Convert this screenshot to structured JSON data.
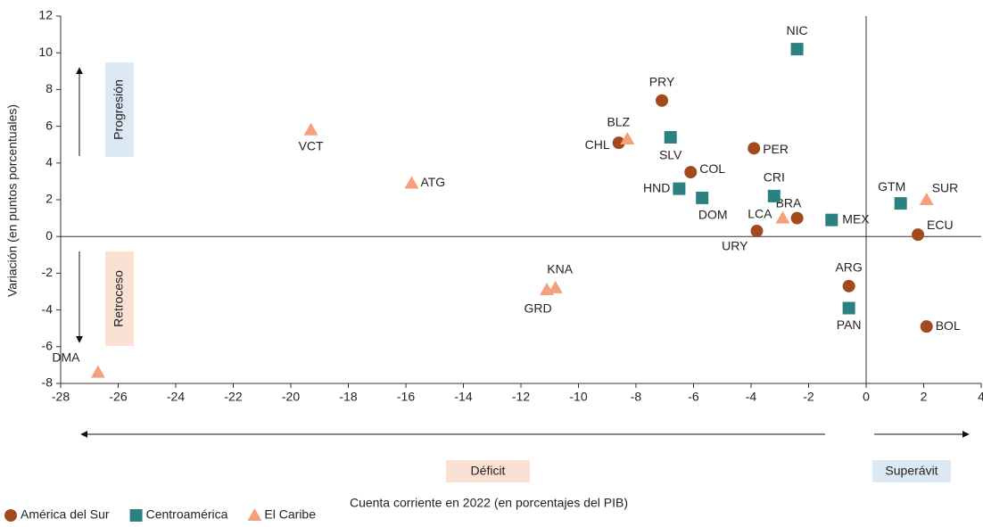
{
  "chart_data": {
    "type": "scatter",
    "xlabel": "Cuenta corriente en 2022 (en porcentajes del PIB)",
    "ylabel": "Variación (en puntos porcentuales)",
    "annotations": [
      "Progresión",
      "Retroceso",
      "Déficit",
      "Superávit"
    ],
    "xlim": [
      -28,
      4
    ],
    "xticks": [
      -28,
      -26,
      -24,
      -22,
      -20,
      -18,
      -16,
      -14,
      -12,
      -10,
      -8,
      -6,
      -4,
      -2,
      0,
      2,
      4
    ],
    "ylim": [
      -8,
      12
    ],
    "yticks": [
      -8,
      -6,
      -4,
      -2,
      0,
      2,
      4,
      6,
      8,
      10,
      12
    ],
    "grid": false,
    "legend": "bottom-left",
    "series": [
      {
        "name": "América del Sur",
        "color": "#a24a1e",
        "marker": "circle",
        "labels": [
          "PRY",
          "CHL",
          "PER",
          "COL",
          "BRA",
          "URY",
          "ECU",
          "ARG",
          "BOL"
        ],
        "x": [
          -7.1,
          -8.6,
          -3.9,
          -6.1,
          -2.4,
          -3.8,
          1.8,
          -0.6,
          2.1
        ],
        "values": [
          7.4,
          5.1,
          4.8,
          3.5,
          1.0,
          0.3,
          0.1,
          -2.7,
          -4.9
        ]
      },
      {
        "name": "Centroamérica",
        "color": "#2b8080",
        "marker": "square",
        "labels": [
          "NIC",
          "SLV",
          "HND",
          "DOM",
          "CRI",
          "MEX",
          "GTM",
          "PAN"
        ],
        "x": [
          -2.4,
          -6.8,
          -6.5,
          -5.7,
          -3.2,
          -1.2,
          1.2,
          -0.6
        ],
        "values": [
          10.2,
          5.4,
          2.6,
          2.1,
          2.2,
          0.9,
          1.8,
          -3.9
        ]
      },
      {
        "name": "El Caribe",
        "color": "#f4a07c",
        "marker": "triangle",
        "labels": [
          "VCT",
          "ATG",
          "BLZ",
          "LCA",
          "SUR",
          "KNA",
          "GRD",
          "DMA"
        ],
        "x": [
          -19.3,
          -15.8,
          -8.3,
          -2.9,
          2.1,
          -10.8,
          -11.1,
          -26.7
        ],
        "values": [
          5.8,
          2.9,
          5.3,
          1.0,
          2.0,
          -2.8,
          -2.9,
          -7.4
        ]
      }
    ]
  }
}
